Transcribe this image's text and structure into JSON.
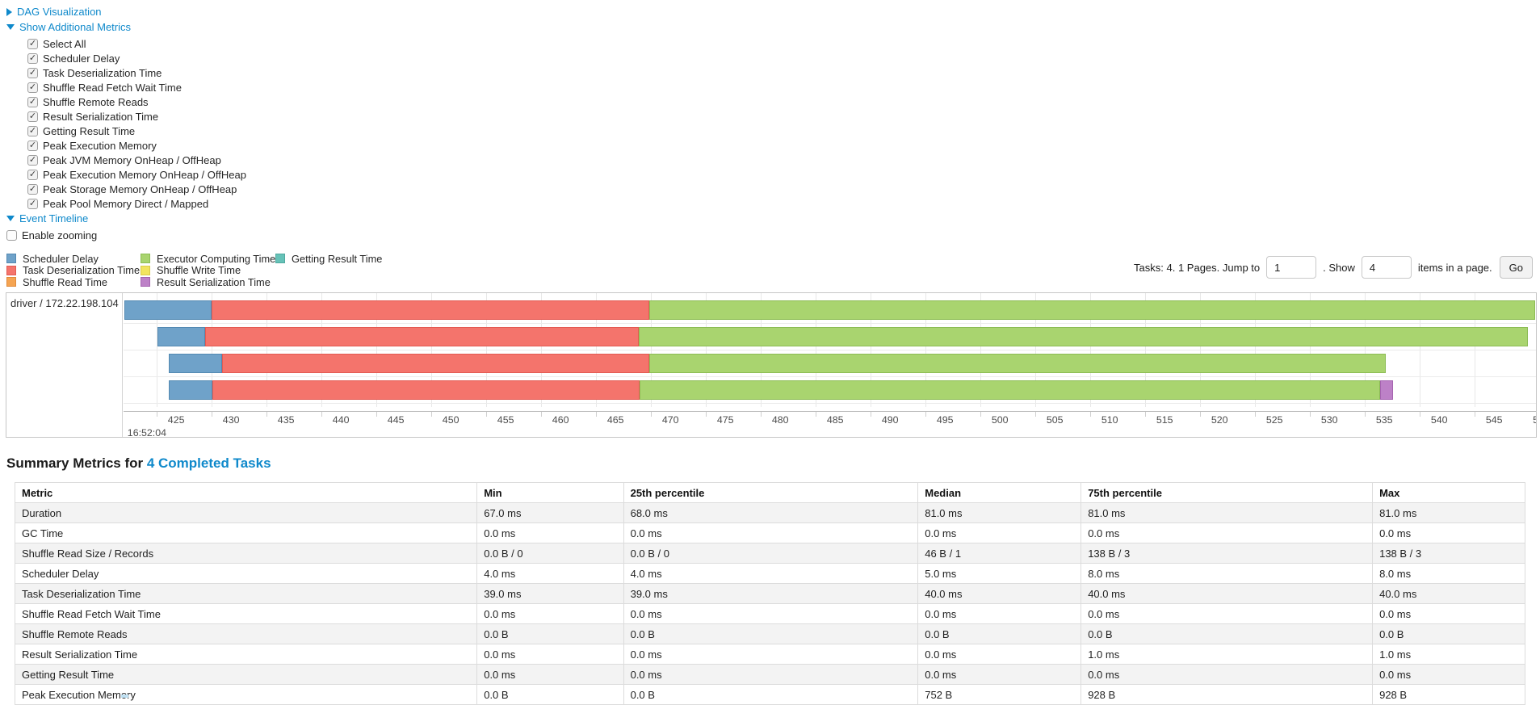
{
  "nav": {
    "dag": "DAG Visualization",
    "metrics": "Show Additional Metrics",
    "timeline": "Event Timeline"
  },
  "metrics_checkboxes": [
    {
      "label": "Select All",
      "checked": true
    },
    {
      "label": "Scheduler Delay",
      "checked": true
    },
    {
      "label": "Task Deserialization Time",
      "checked": true
    },
    {
      "label": "Shuffle Read Fetch Wait Time",
      "checked": true
    },
    {
      "label": "Shuffle Remote Reads",
      "checked": true
    },
    {
      "label": "Result Serialization Time",
      "checked": true
    },
    {
      "label": "Getting Result Time",
      "checked": true
    },
    {
      "label": "Peak Execution Memory",
      "checked": true
    },
    {
      "label": "Peak JVM Memory OnHeap / OffHeap",
      "checked": true
    },
    {
      "label": "Peak Execution Memory OnHeap / OffHeap",
      "checked": true
    },
    {
      "label": "Peak Storage Memory OnHeap / OffHeap",
      "checked": true
    },
    {
      "label": "Peak Pool Memory Direct / Mapped",
      "checked": true
    }
  ],
  "enable_zooming": {
    "label": "Enable zooming",
    "checked": false
  },
  "colors": {
    "scheduler_delay": {
      "fill": "#6FA2C9",
      "border": "#5389B2"
    },
    "task_deserialization": {
      "fill": "#F4746C",
      "border": "#E35A52"
    },
    "shuffle_read": {
      "fill": "#F5A452",
      "border": "#E08A3C"
    },
    "executor_computing": {
      "fill": "#A9D46F",
      "border": "#8CBC54"
    },
    "shuffle_write": {
      "fill": "#F2E45F",
      "border": "#D9C94A"
    },
    "result_serialization": {
      "fill": "#BD81C7",
      "border": "#A563B0"
    },
    "getting_result": {
      "fill": "#66C2B8",
      "border": "#4FA99F"
    }
  },
  "legend_columns": [
    [
      {
        "label": "Scheduler Delay",
        "color_key": "scheduler_delay"
      },
      {
        "label": "Task Deserialization Time",
        "color_key": "task_deserialization"
      },
      {
        "label": "Shuffle Read Time",
        "color_key": "shuffle_read"
      }
    ],
    [
      {
        "label": "Executor Computing Time",
        "color_key": "executor_computing"
      },
      {
        "label": "Shuffle Write Time",
        "color_key": "shuffle_write"
      },
      {
        "label": "Result Serialization Time",
        "color_key": "result_serialization"
      }
    ],
    [
      {
        "label": "Getting Result Time",
        "color_key": "getting_result"
      }
    ]
  ],
  "pagination": {
    "tasks_text": "Tasks: 4. 1 Pages. Jump to",
    "jump_value": "1",
    "show_text": ". Show",
    "show_value": "4",
    "items_text": "items in a page.",
    "go_label": "Go"
  },
  "chart_data": {
    "type": "timeline",
    "group_label": "driver / 172.22.198.104",
    "axis": {
      "range": [
        422.0,
        550.6
      ],
      "tick_start": 425,
      "tick_step": 5,
      "tick_end": 545,
      "clipped_last_label": "5",
      "major_label": "16:52:04"
    },
    "tasks": [
      {
        "segments": [
          {
            "type": "scheduler_delay",
            "start": 422.1,
            "end": 430.0
          },
          {
            "type": "task_deserialization",
            "start": 430.0,
            "end": 469.9
          },
          {
            "type": "executor_computing",
            "start": 469.9,
            "end": 550.5
          }
        ]
      },
      {
        "segments": [
          {
            "type": "scheduler_delay",
            "start": 425.1,
            "end": 429.4
          },
          {
            "type": "task_deserialization",
            "start": 429.4,
            "end": 468.9
          },
          {
            "type": "executor_computing",
            "start": 468.9,
            "end": 549.9
          }
        ]
      },
      {
        "segments": [
          {
            "type": "scheduler_delay",
            "start": 426.1,
            "end": 431.0
          },
          {
            "type": "task_deserialization",
            "start": 431.0,
            "end": 469.9
          },
          {
            "type": "executor_computing",
            "start": 469.9,
            "end": 536.9
          }
        ]
      },
      {
        "segments": [
          {
            "type": "scheduler_delay",
            "start": 426.1,
            "end": 430.1
          },
          {
            "type": "task_deserialization",
            "start": 430.1,
            "end": 469.0
          },
          {
            "type": "executor_computing",
            "start": 469.0,
            "end": 536.4
          },
          {
            "type": "result_serialization",
            "start": 536.4,
            "end": 537.6
          }
        ]
      }
    ]
  },
  "summary": {
    "title_prefix": "Summary Metrics for ",
    "title_link": "4 Completed Tasks",
    "columns": [
      "Metric",
      "Min",
      "25th percentile",
      "Median",
      "75th percentile",
      "Max"
    ],
    "rows": [
      [
        "Duration",
        "67.0 ms",
        "68.0 ms",
        "81.0 ms",
        "81.0 ms",
        "81.0 ms"
      ],
      [
        "GC Time",
        "0.0 ms",
        "0.0 ms",
        "0.0 ms",
        "0.0 ms",
        "0.0 ms"
      ],
      [
        "Shuffle Read Size / Records",
        "0.0 B / 0",
        "0.0 B / 0",
        "46 B / 1",
        "138 B / 3",
        "138 B / 3"
      ],
      [
        "Scheduler Delay",
        "4.0 ms",
        "4.0 ms",
        "5.0 ms",
        "8.0 ms",
        "8.0 ms"
      ],
      [
        "Task Deserialization Time",
        "39.0 ms",
        "39.0 ms",
        "40.0 ms",
        "40.0 ms",
        "40.0 ms"
      ],
      [
        "Shuffle Read Fetch Wait Time",
        "0.0 ms",
        "0.0 ms",
        "0.0 ms",
        "0.0 ms",
        "0.0 ms"
      ],
      [
        "Shuffle Remote Reads",
        "0.0 B",
        "0.0 B",
        "0.0 B",
        "0.0 B",
        "0.0 B"
      ],
      [
        "Result Serialization Time",
        "0.0 ms",
        "0.0 ms",
        "0.0 ms",
        "1.0 ms",
        "1.0 ms"
      ],
      [
        "Getting Result Time",
        "0.0 ms",
        "0.0 ms",
        "0.0 ms",
        "0.0 ms",
        "0.0 ms"
      ],
      [
        "Peak Execution Memory",
        "0.0 B",
        "0.0 B",
        "752 B",
        "928 B",
        "928 B"
      ]
    ]
  }
}
